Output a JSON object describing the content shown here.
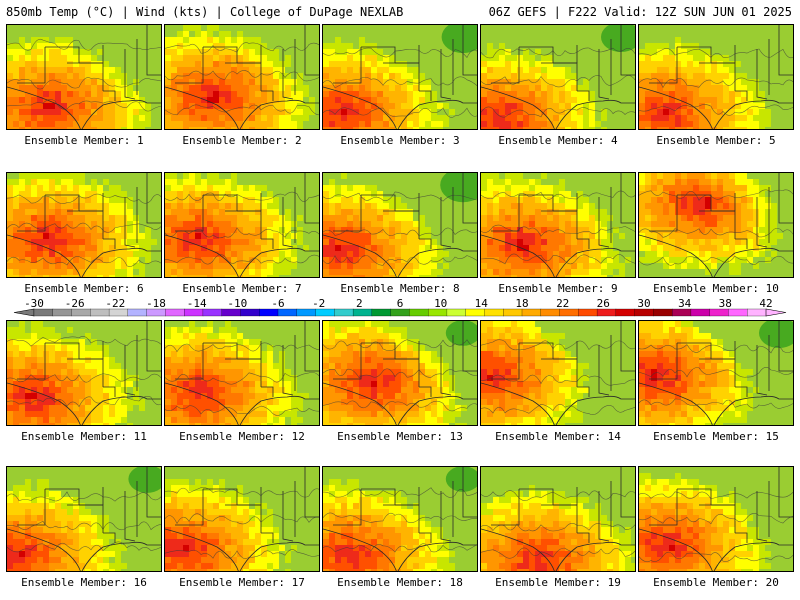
{
  "header": {
    "left": "850mb Temp (°C) | Wind (kts) | College of DuPage NEXLAB",
    "right": "06Z GEFS | F222 Valid: 12Z SUN JUN 01 2025"
  },
  "members": [
    {
      "label": "Ensemble Member: 1",
      "hot": [
        0.25,
        0.75
      ],
      "green": 0.25
    },
    {
      "label": "Ensemble Member: 2",
      "hot": [
        0.3,
        0.65
      ],
      "green": 0.2
    },
    {
      "label": "Ensemble Member: 3",
      "hot": [
        0.1,
        0.8
      ],
      "green": 0.55
    },
    {
      "label": "Ensemble Member: 4",
      "hot": [
        0.1,
        0.85
      ],
      "green": 0.5
    },
    {
      "label": "Ensemble Member: 5",
      "hot": [
        0.15,
        0.8
      ],
      "green": 0.25
    },
    {
      "label": "Ensemble Member: 6",
      "hot": [
        0.25,
        0.6
      ],
      "green": 0.05
    },
    {
      "label": "Ensemble Member: 7",
      "hot": [
        0.2,
        0.6
      ],
      "green": 0.05
    },
    {
      "label": "Ensemble Member: 8",
      "hot": [
        0.1,
        0.7
      ],
      "green": 0.6
    },
    {
      "label": "Ensemble Member: 9",
      "hot": [
        0.25,
        0.65
      ],
      "green": 0.15
    },
    {
      "label": "Ensemble Member: 10",
      "hot": [
        0.4,
        0.25
      ],
      "green": 0.3
    },
    {
      "label": "Ensemble Member: 11",
      "hot": [
        0.15,
        0.7
      ],
      "green": 0.05
    },
    {
      "label": "Ensemble Member: 12",
      "hot": [
        0.2,
        0.65
      ],
      "green": 0.1
    },
    {
      "label": "Ensemble Member: 13",
      "hot": [
        0.3,
        0.55
      ],
      "green": 0.4
    },
    {
      "label": "Ensemble Member: 14",
      "hot": [
        0.05,
        0.5
      ],
      "green": 0.35
    },
    {
      "label": "Ensemble Member: 15",
      "hot": [
        0.1,
        0.5
      ],
      "green": 0.5
    },
    {
      "label": "Ensemble Member: 16",
      "hot": [
        0.05,
        0.8
      ],
      "green": 0.45
    },
    {
      "label": "Ensemble Member: 17",
      "hot": [
        0.1,
        0.75
      ],
      "green": 0.1
    },
    {
      "label": "Ensemble Member: 18",
      "hot": [
        0.15,
        0.8
      ],
      "green": 0.4
    },
    {
      "label": "Ensemble Member: 19",
      "hot": [
        0.35,
        0.85
      ],
      "green": 0.15
    },
    {
      "label": "Ensemble Member: 20",
      "hot": [
        0.15,
        0.7
      ],
      "green": 0.2
    }
  ],
  "colorbar": {
    "labels": [
      "-30",
      "-26",
      "-22",
      "-18",
      "-14",
      "-10",
      "-6",
      "-2",
      "2",
      "6",
      "10",
      "14",
      "18",
      "22",
      "26",
      "30",
      "34",
      "38",
      "42"
    ],
    "colors": [
      "#7a7a7a",
      "#969696",
      "#a8a8a8",
      "#bebebe",
      "#d4d4d4",
      "#b3b3ff",
      "#cc99ff",
      "#e066ff",
      "#cc33ff",
      "#9933ff",
      "#6600cc",
      "#3300cc",
      "#0000ff",
      "#0066ff",
      "#0099ff",
      "#00ccff",
      "#33cccc",
      "#00b38f",
      "#009933",
      "#33a11c",
      "#66cc00",
      "#99e600",
      "#ccff33",
      "#ffff00",
      "#ffe100",
      "#ffc800",
      "#ffaa00",
      "#ff8c00",
      "#ff6e00",
      "#ff4b00",
      "#ee1c1c",
      "#d40000",
      "#b80000",
      "#990000",
      "#aa0055",
      "#cc00aa",
      "#ee22cc",
      "#ff66ff",
      "#ffb3ff"
    ]
  },
  "palette": [
    "#9acd32",
    "#c8e600",
    "#ffff00",
    "#ffd200",
    "#ffb400",
    "#ff9600",
    "#ff7800",
    "#ff5000",
    "#ee2a1a",
    "#d40000"
  ]
}
